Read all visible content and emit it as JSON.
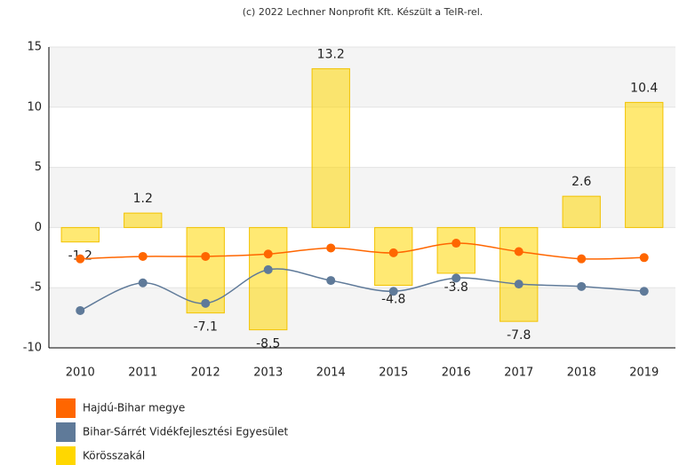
{
  "chart_data": {
    "type": "bar",
    "credits": "(c) 2022 Lechner Nonprofit Kft. Készült a TeIR-rel.",
    "categories": [
      "2010",
      "2011",
      "2012",
      "2013",
      "2014",
      "2015",
      "2016",
      "2017",
      "2018",
      "2019"
    ],
    "ylim": [
      -10,
      15
    ],
    "yticks": [
      -10,
      -5,
      0,
      5,
      10,
      15
    ],
    "grid": true,
    "series": [
      {
        "name": "Hajdú-Bihar megye",
        "type": "line",
        "color": "#ff6600",
        "values": [
          -2.6,
          -2.4,
          -2.4,
          -2.2,
          -1.7,
          -2.1,
          -1.3,
          -2.0,
          -2.6,
          -2.5
        ]
      },
      {
        "name": "Bihar-Sárrét Vidékfejlesztési Egyesület",
        "type": "line",
        "color": "#5f7a99",
        "values": [
          -6.9,
          -4.6,
          -6.3,
          -3.5,
          -4.4,
          -5.3,
          -4.2,
          -4.7,
          -4.9,
          -5.3
        ]
      },
      {
        "name": "Körösszakál",
        "type": "bar",
        "color": "#ffd700",
        "values": [
          -1.2,
          1.2,
          -7.1,
          -8.5,
          13.2,
          -4.8,
          -3.8,
          -7.8,
          2.6,
          10.4
        ]
      }
    ]
  }
}
